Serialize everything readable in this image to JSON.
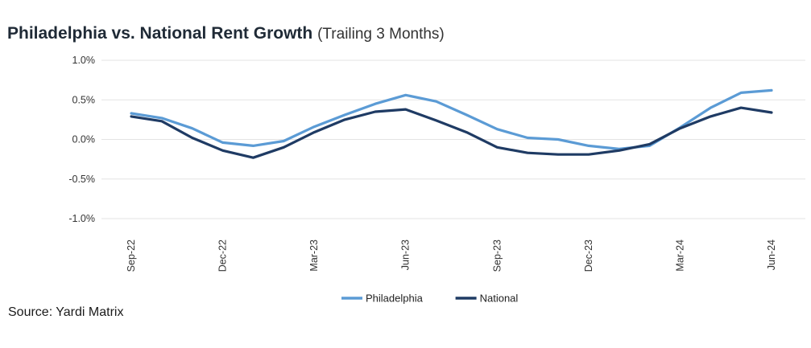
{
  "title": "Philadelphia vs. National Rent Growth",
  "subtitle": "(Trailing 3 Months)",
  "source": "Source: Yardi Matrix",
  "chart_data": {
    "type": "line",
    "title": "Philadelphia vs. National Rent Growth",
    "subtitle": "(Trailing 3 Months)",
    "xlabel": "",
    "ylabel": "",
    "ylim": [
      -1.0,
      1.0
    ],
    "yticks": [
      "1.0%",
      "0.5%",
      "0.0%",
      "-0.5%",
      "-1.0%"
    ],
    "ytick_values": [
      1.0,
      0.5,
      0.0,
      -0.5,
      -1.0
    ],
    "x": [
      "Sep-22",
      "Oct-22",
      "Nov-22",
      "Dec-22",
      "Jan-23",
      "Feb-23",
      "Mar-23",
      "Apr-23",
      "May-23",
      "Jun-23",
      "Jul-23",
      "Aug-23",
      "Sep-23",
      "Oct-23",
      "Nov-23",
      "Dec-23",
      "Jan-24",
      "Feb-24",
      "Mar-24",
      "Apr-24",
      "May-24",
      "Jun-24"
    ],
    "xtick_labels": [
      "Sep-22",
      "Dec-22",
      "Mar-23",
      "Jun-23",
      "Sep-23",
      "Dec-23",
      "Mar-24",
      "Jun-24"
    ],
    "grid": true,
    "legend_position": "bottom-center",
    "series": [
      {
        "name": "Philadelphia",
        "color": "#5b9bd5",
        "values": [
          0.33,
          0.27,
          0.14,
          -0.04,
          -0.08,
          -0.02,
          0.16,
          0.31,
          0.45,
          0.56,
          0.48,
          0.31,
          0.13,
          0.02,
          0.0,
          -0.08,
          -0.12,
          -0.08,
          0.15,
          0.4,
          0.59,
          0.62
        ]
      },
      {
        "name": "National",
        "color": "#1f3b64",
        "values": [
          0.29,
          0.23,
          0.02,
          -0.14,
          -0.23,
          -0.1,
          0.09,
          0.25,
          0.35,
          0.38,
          0.24,
          0.09,
          -0.1,
          -0.17,
          -0.19,
          -0.19,
          -0.14,
          -0.06,
          0.14,
          0.29,
          0.4,
          0.34
        ]
      }
    ]
  }
}
